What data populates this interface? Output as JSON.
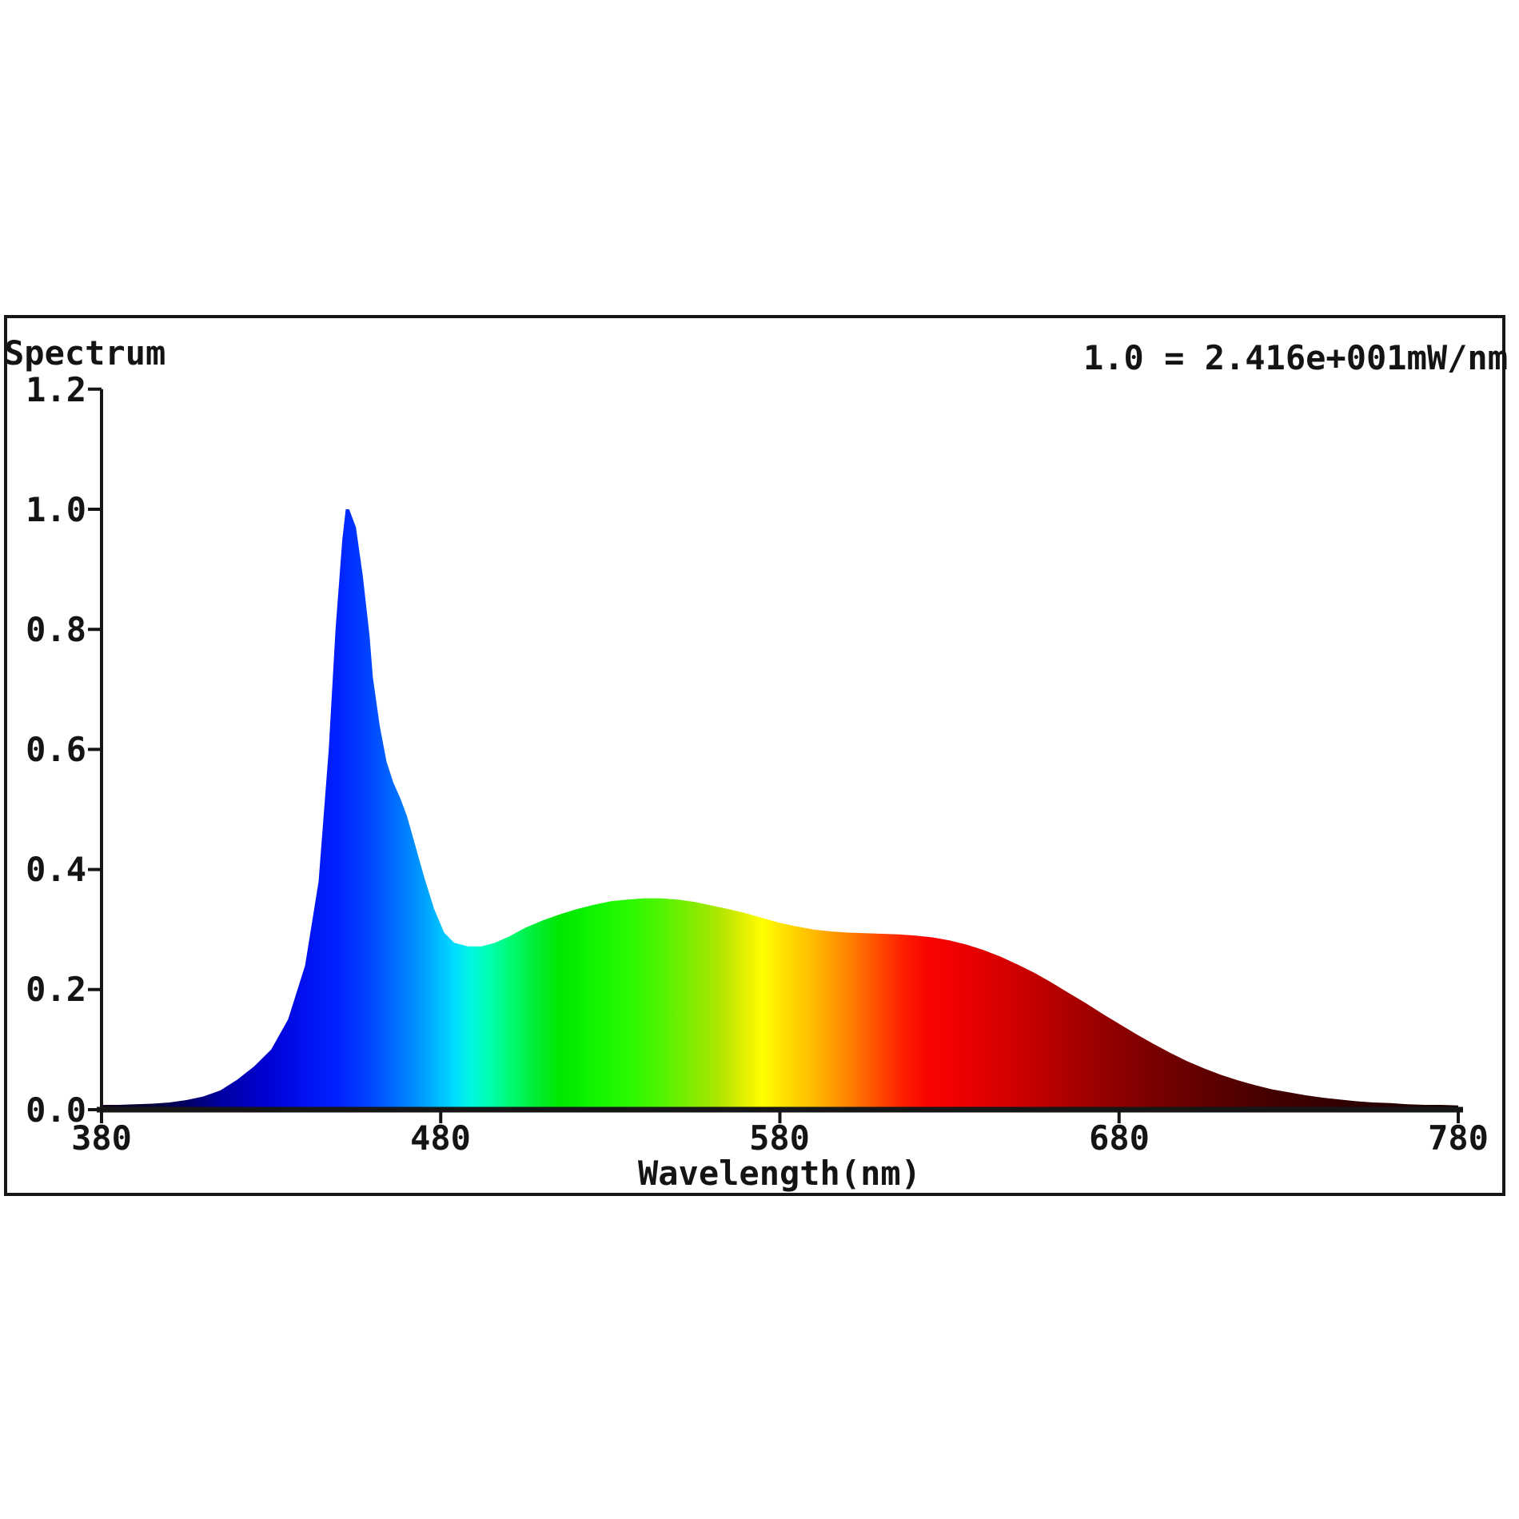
{
  "title": "Spectrum",
  "scale_note": "1.0 = 2.416e+001mW/nm",
  "axes": {
    "x": {
      "label": "Wavelength(nm)",
      "min": 380,
      "max": 780,
      "ticks": [
        "380",
        "480",
        "580",
        "680",
        "780"
      ]
    },
    "y": {
      "label": "",
      "min": 0.0,
      "max": 1.2,
      "ticks": [
        "1.2",
        "1.0",
        "0.8",
        "0.6",
        "0.4",
        "0.2",
        "0.0"
      ]
    }
  },
  "chart_data": {
    "type": "area",
    "title": "Spectrum",
    "annotation": "1.0 = 2.416e+001mW/nm",
    "xlabel": "Wavelength(nm)",
    "ylabel": "",
    "xlim": [
      380,
      780
    ],
    "ylim": [
      0,
      1.2
    ],
    "x_ticks": [
      380,
      480,
      580,
      680,
      780
    ],
    "y_ticks": [
      0.0,
      0.2,
      0.4,
      0.6,
      0.8,
      1.0,
      1.2
    ],
    "grid": false,
    "legend_position": "none",
    "peak": {
      "wavelength": 452,
      "value": 1.0
    },
    "dip": {
      "wavelength": 486,
      "value": 0.273
    },
    "secondary_hump": {
      "wavelength": 542,
      "value": 0.352
    },
    "series": [
      {
        "name": "normalized spectral power",
        "points": [
          [
            380,
            0.008
          ],
          [
            385,
            0.008
          ],
          [
            390,
            0.009
          ],
          [
            395,
            0.01
          ],
          [
            400,
            0.012
          ],
          [
            405,
            0.016
          ],
          [
            410,
            0.022
          ],
          [
            415,
            0.032
          ],
          [
            420,
            0.05
          ],
          [
            425,
            0.072
          ],
          [
            430,
            0.1
          ],
          [
            435,
            0.15
          ],
          [
            440,
            0.24
          ],
          [
            444,
            0.38
          ],
          [
            447,
            0.6
          ],
          [
            449,
            0.8
          ],
          [
            451,
            0.95
          ],
          [
            452,
            1.0
          ],
          [
            453,
            1.0
          ],
          [
            455,
            0.97
          ],
          [
            457,
            0.89
          ],
          [
            459,
            0.79
          ],
          [
            460,
            0.72
          ],
          [
            462,
            0.64
          ],
          [
            464,
            0.58
          ],
          [
            466,
            0.545
          ],
          [
            468,
            0.52
          ],
          [
            470,
            0.49
          ],
          [
            472,
            0.45
          ],
          [
            475,
            0.39
          ],
          [
            478,
            0.335
          ],
          [
            481,
            0.295
          ],
          [
            484,
            0.278
          ],
          [
            488,
            0.272
          ],
          [
            492,
            0.272
          ],
          [
            496,
            0.278
          ],
          [
            500,
            0.288
          ],
          [
            505,
            0.303
          ],
          [
            510,
            0.315
          ],
          [
            515,
            0.325
          ],
          [
            520,
            0.334
          ],
          [
            525,
            0.341
          ],
          [
            530,
            0.347
          ],
          [
            535,
            0.35
          ],
          [
            540,
            0.352
          ],
          [
            545,
            0.352
          ],
          [
            550,
            0.35
          ],
          [
            555,
            0.346
          ],
          [
            560,
            0.34
          ],
          [
            565,
            0.334
          ],
          [
            570,
            0.327
          ],
          [
            575,
            0.319
          ],
          [
            580,
            0.311
          ],
          [
            585,
            0.305
          ],
          [
            590,
            0.3
          ],
          [
            595,
            0.297
          ],
          [
            600,
            0.295
          ],
          [
            605,
            0.294
          ],
          [
            610,
            0.293
          ],
          [
            615,
            0.292
          ],
          [
            620,
            0.29
          ],
          [
            625,
            0.287
          ],
          [
            630,
            0.282
          ],
          [
            635,
            0.275
          ],
          [
            640,
            0.266
          ],
          [
            645,
            0.255
          ],
          [
            650,
            0.242
          ],
          [
            655,
            0.228
          ],
          [
            660,
            0.212
          ],
          [
            665,
            0.195
          ],
          [
            670,
            0.178
          ],
          [
            675,
            0.16
          ],
          [
            680,
            0.143
          ],
          [
            685,
            0.126
          ],
          [
            690,
            0.11
          ],
          [
            695,
            0.095
          ],
          [
            700,
            0.081
          ],
          [
            705,
            0.069
          ],
          [
            710,
            0.058
          ],
          [
            715,
            0.049
          ],
          [
            720,
            0.041
          ],
          [
            725,
            0.034
          ],
          [
            730,
            0.029
          ],
          [
            735,
            0.024
          ],
          [
            740,
            0.02
          ],
          [
            745,
            0.017
          ],
          [
            750,
            0.014
          ],
          [
            755,
            0.012
          ],
          [
            760,
            0.011
          ],
          [
            765,
            0.009
          ],
          [
            770,
            0.008
          ],
          [
            775,
            0.008
          ],
          [
            780,
            0.007
          ]
        ]
      }
    ],
    "color_stops": [
      [
        380,
        "#12001e"
      ],
      [
        395,
        "#05003c"
      ],
      [
        405,
        "#000064"
      ],
      [
        415,
        "#0000a0"
      ],
      [
        428,
        "#0000d2"
      ],
      [
        440,
        "#0011f0"
      ],
      [
        450,
        "#0022ff"
      ],
      [
        458,
        "#0040ff"
      ],
      [
        465,
        "#0064ff"
      ],
      [
        472,
        "#008cff"
      ],
      [
        478,
        "#00b4ff"
      ],
      [
        484,
        "#00dcff"
      ],
      [
        489,
        "#00f8e0"
      ],
      [
        494,
        "#00ffb4"
      ],
      [
        500,
        "#00fa78"
      ],
      [
        507,
        "#00f03c"
      ],
      [
        515,
        "#00e800"
      ],
      [
        525,
        "#10f400"
      ],
      [
        535,
        "#28fa00"
      ],
      [
        545,
        "#50f400"
      ],
      [
        555,
        "#86ea00"
      ],
      [
        563,
        "#b4e600"
      ],
      [
        570,
        "#e6f000"
      ],
      [
        575,
        "#ffff00"
      ],
      [
        581,
        "#ffe100"
      ],
      [
        588,
        "#ffc300"
      ],
      [
        595,
        "#ffa000"
      ],
      [
        602,
        "#ff7800"
      ],
      [
        609,
        "#ff4b00"
      ],
      [
        616,
        "#ff2000"
      ],
      [
        623,
        "#fa0500"
      ],
      [
        632,
        "#ef0000"
      ],
      [
        645,
        "#d80000"
      ],
      [
        658,
        "#bb0000"
      ],
      [
        672,
        "#9d0000"
      ],
      [
        688,
        "#7d0000"
      ],
      [
        705,
        "#600000"
      ],
      [
        725,
        "#430000"
      ],
      [
        750,
        "#2d0000"
      ],
      [
        780,
        "#1a0000"
      ]
    ],
    "axis_color": "#161616",
    "background_color": "#ffffff"
  }
}
